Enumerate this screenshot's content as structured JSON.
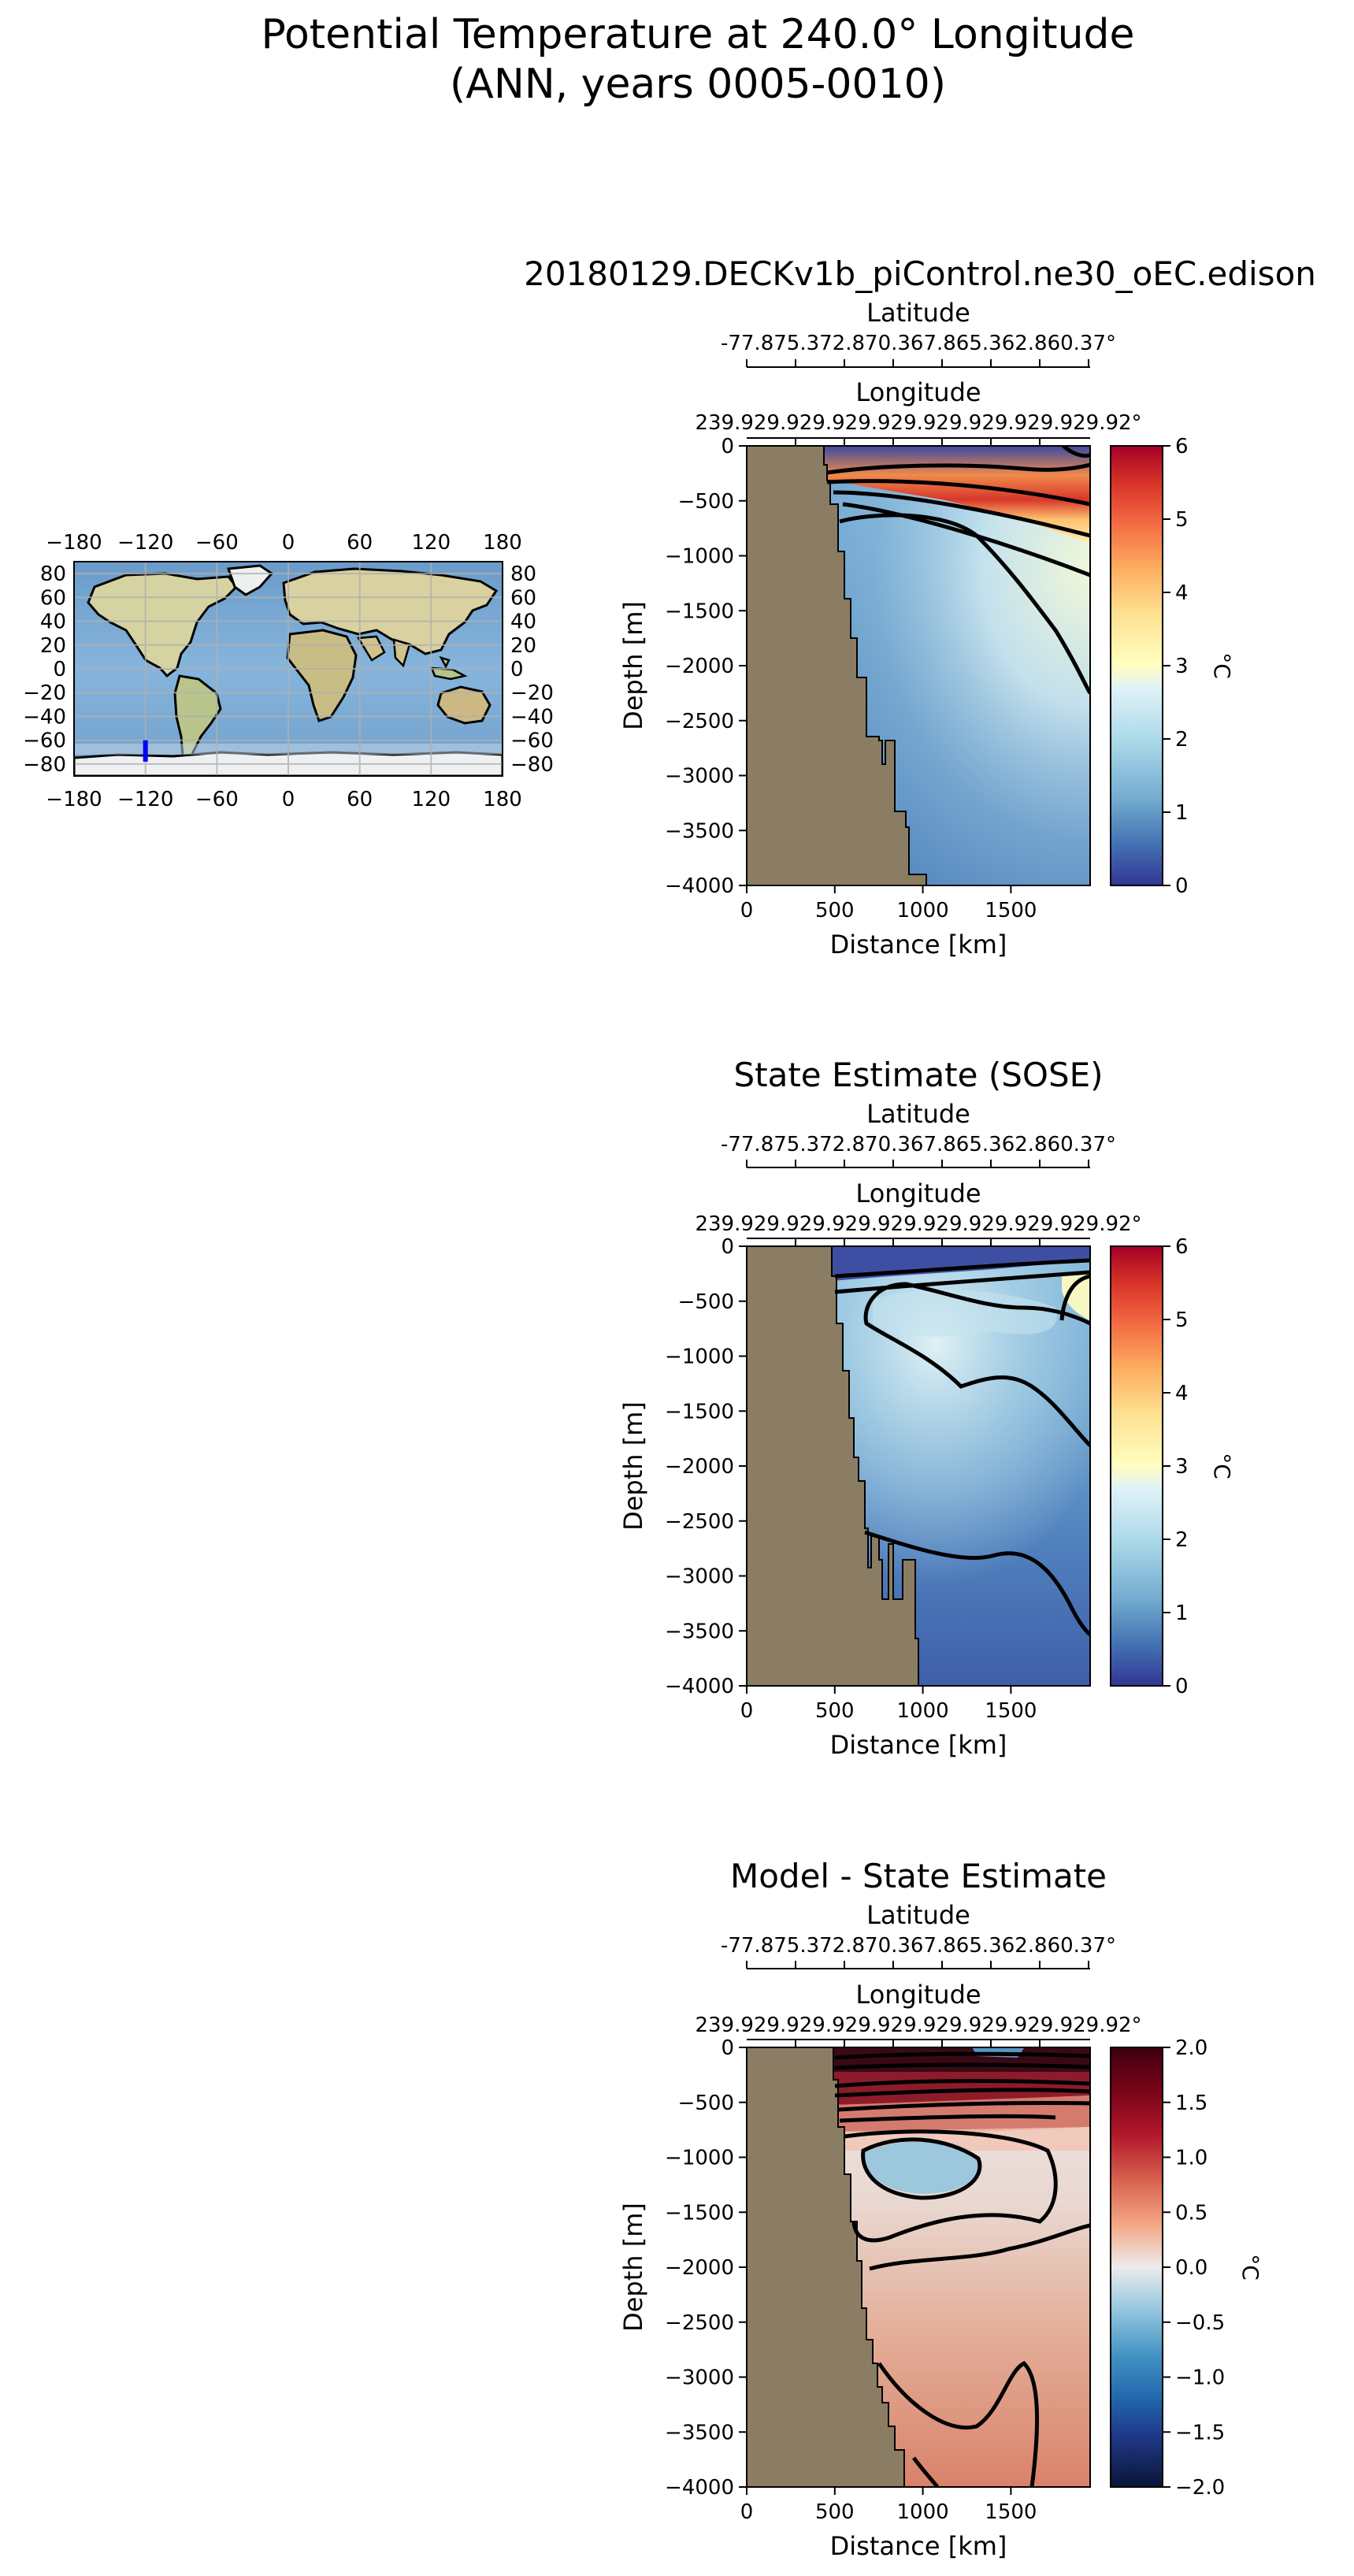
{
  "figure": {
    "title_line1": "Potential Temperature at 240.0° Longitude",
    "title_line2": "(ANN, years 0005-0010)"
  },
  "map": {
    "x_ticks": [
      "−180",
      "−120",
      "−60",
      "0",
      "60",
      "120",
      "180"
    ],
    "y_ticks": [
      "80",
      "60",
      "40",
      "20",
      "0",
      "−20",
      "−40",
      "−60",
      "−80"
    ],
    "transect_color": "#0000ff",
    "transect_lon": -120,
    "transect_lat_range": [
      -78,
      -60
    ]
  },
  "chart_data": [
    {
      "type": "heatmap",
      "title": "20180129.DECKv1b_piControl.ne30_oEC.edison",
      "top_axis1_label": "Latitude",
      "top_axis1_ticks": "-77.875.372.870.367.865.362.860.37°",
      "top_axis2_label": "Longitude",
      "top_axis2_ticks": "239.929.929.929.929.929.929.929.929.92°",
      "xlabel": "Distance [km]",
      "ylabel": "Depth [m]",
      "xlim": [
        0,
        1950
      ],
      "ylim": [
        -4000,
        0
      ],
      "x_ticks": [
        "0",
        "500",
        "1000",
        "1500"
      ],
      "y_ticks": [
        "0",
        "−500",
        "−1000",
        "−1500",
        "−2000",
        "−2500",
        "−3000",
        "−3500",
        "−4000"
      ],
      "colorbar": {
        "label": "°C",
        "range": [
          0,
          6
        ],
        "ticks": [
          "0",
          "1",
          "2",
          "3",
          "4",
          "5",
          "6"
        ],
        "colormap": "RdYlBu_r"
      },
      "land_color": "#8b7d63",
      "contour_levels": [
        1,
        2,
        3,
        4,
        5
      ]
    },
    {
      "type": "heatmap",
      "title": "State Estimate (SOSE)",
      "top_axis1_label": "Latitude",
      "top_axis1_ticks": "-77.875.372.870.367.865.362.860.37°",
      "top_axis2_label": "Longitude",
      "top_axis2_ticks": "239.929.929.929.929.929.929.929.929.92°",
      "xlabel": "Distance [km]",
      "ylabel": "Depth [m]",
      "xlim": [
        0,
        1950
      ],
      "ylim": [
        -4000,
        0
      ],
      "x_ticks": [
        "0",
        "500",
        "1000",
        "1500"
      ],
      "y_ticks": [
        "0",
        "−500",
        "−1000",
        "−1500",
        "−2000",
        "−2500",
        "−3000",
        "−3500",
        "−4000"
      ],
      "colorbar": {
        "label": "°C",
        "range": [
          0,
          6
        ],
        "ticks": [
          "0",
          "1",
          "2",
          "3",
          "4",
          "5",
          "6"
        ],
        "colormap": "RdYlBu_r"
      },
      "land_color": "#8b7d63",
      "contour_levels": [
        0.5,
        1,
        1.5,
        2
      ]
    },
    {
      "type": "heatmap",
      "title": "Model - State Estimate",
      "top_axis1_label": "Latitude",
      "top_axis1_ticks": "-77.875.372.870.367.865.362.860.37°",
      "top_axis2_label": "Longitude",
      "top_axis2_ticks": "239.929.929.929.929.929.929.929.929.92°",
      "xlabel": "Distance [km]",
      "ylabel": "Depth [m]",
      "xlim": [
        0,
        1950
      ],
      "ylim": [
        -4000,
        0
      ],
      "x_ticks": [
        "0",
        "500",
        "1000",
        "1500"
      ],
      "y_ticks": [
        "0",
        "−500",
        "−1000",
        "−1500",
        "−2000",
        "−2500",
        "−3000",
        "−3500",
        "−4000"
      ],
      "colorbar": {
        "label": "°C",
        "range": [
          -2,
          2
        ],
        "ticks": [
          "−2.0",
          "−1.5",
          "−1.0",
          "−0.5",
          "0.0",
          "0.5",
          "1.0",
          "1.5",
          "2.0"
        ],
        "colormap": "RdBu_r"
      },
      "land_color": "#8b7d63",
      "contour_levels": [
        -0.5,
        0,
        0.25,
        0.5,
        1.0
      ]
    }
  ]
}
